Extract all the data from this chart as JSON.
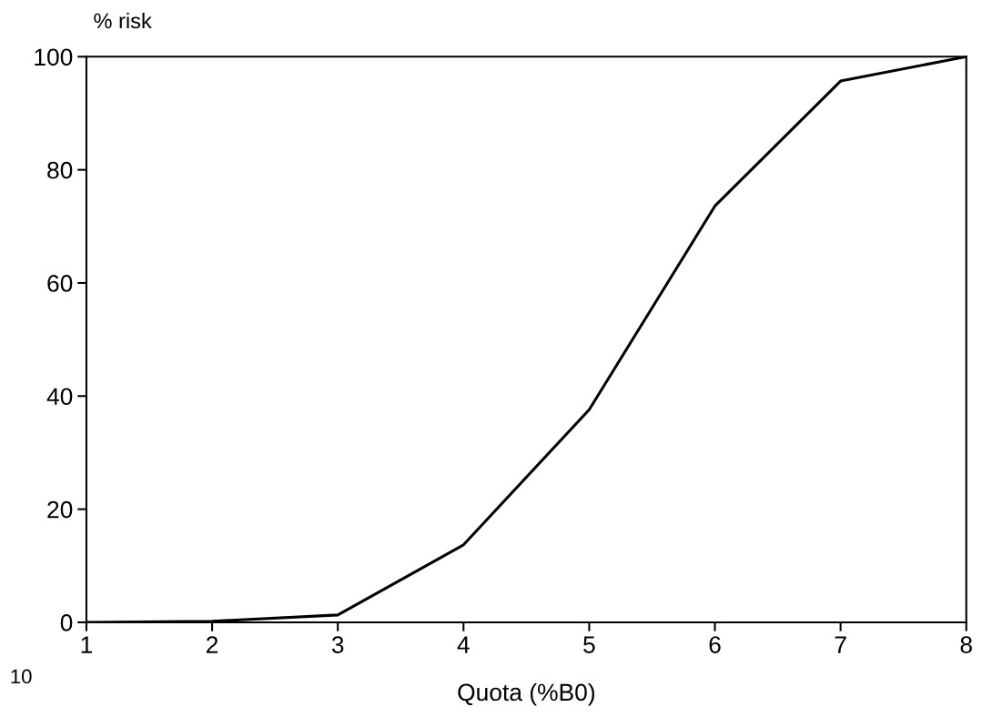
{
  "chart_data": {
    "type": "line",
    "ylabel": "% risk",
    "xlabel": "Quota (%B0)",
    "x": [
      1,
      2,
      3,
      4,
      5,
      6,
      7,
      8
    ],
    "series": [
      {
        "color": "#000000",
        "values": [
          0,
          0.2,
          1.3,
          13.7,
          37.6,
          73.6,
          95.7,
          100
        ]
      }
    ],
    "xlim": [
      1,
      8
    ],
    "xticks": [
      1,
      2,
      3,
      4,
      5,
      6,
      7,
      8
    ],
    "ylim": [
      0,
      100
    ],
    "yticks": [
      0,
      20,
      40,
      60,
      80,
      100
    ],
    "grid": false,
    "legend": false,
    "marker": "none",
    "line_style": "solid",
    "annotations": [
      "10"
    ]
  }
}
